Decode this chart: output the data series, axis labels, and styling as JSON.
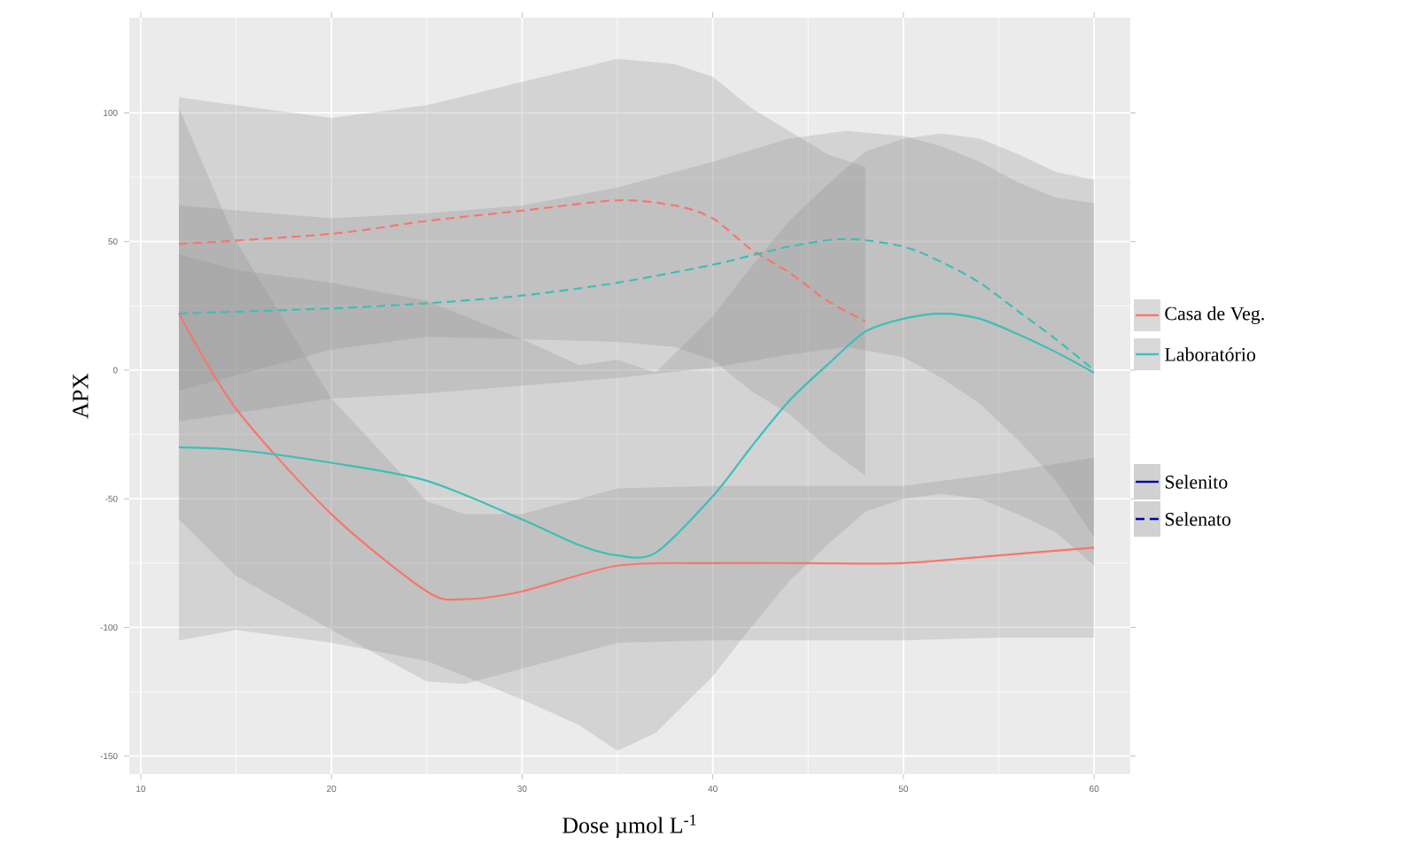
{
  "chart_data": {
    "type": "line",
    "xlabel": "Dose µmol L$^{-1}$",
    "ylabel": "APX",
    "xlim": [
      9.4,
      61.9
    ],
    "ylim": [
      -157,
      137
    ],
    "xticks": [
      10,
      20,
      30,
      40,
      50,
      60
    ],
    "yticks": [
      -150,
      -100,
      -50,
      0,
      50,
      100
    ],
    "grid": true,
    "legend": "right",
    "series": [
      {
        "name": "Casa de Veg.",
        "color": "#f8766d",
        "line_style": "solid",
        "x": [
          12,
          15,
          20,
          25,
          27,
          30,
          35,
          40,
          45,
          50,
          55,
          60
        ],
        "values": [
          22,
          -15,
          -56,
          -86,
          -89,
          -86,
          -76,
          -75,
          -75,
          -75,
          -72,
          -69
        ],
        "lower": [
          -58,
          -80,
          -101,
          -121,
          -122,
          -116,
          -106,
          -105,
          -105,
          -105,
          -104,
          -104
        ],
        "upper": [
          102,
          50,
          -11,
          -51,
          -56,
          -56,
          -46,
          -45,
          -45,
          -45,
          -40,
          -34
        ]
      },
      {
        "name": "Laboratório",
        "color": "#3cbfb8",
        "line_style": "solid",
        "x": [
          12,
          15,
          20,
          25,
          30,
          33,
          35,
          37,
          40,
          42,
          44,
          46,
          48,
          50,
          52,
          54,
          56,
          58,
          60
        ],
        "values": [
          -30,
          -31,
          -36,
          -43,
          -58,
          -68,
          -72,
          -71,
          -49,
          -30,
          -12,
          2,
          15,
          20,
          22,
          20,
          14,
          7,
          -1
        ],
        "lower": [
          -105,
          -101,
          -106,
          -113,
          -128,
          -138,
          -148,
          -141,
          -119,
          -100,
          -82,
          -68,
          -55,
          -50,
          -48,
          -50,
          -56,
          -63,
          -76
        ],
        "upper": [
          45,
          39,
          34,
          27,
          12,
          2,
          4,
          -1,
          21,
          40,
          58,
          72,
          85,
          90,
          92,
          90,
          84,
          77,
          74
        ]
      },
      {
        "color": "#f8766d",
        "line_style": "dashed",
        "x": [
          12,
          20,
          25,
          30,
          35,
          38,
          40,
          42,
          44,
          46,
          48
        ],
        "values": [
          49,
          53,
          58,
          62,
          66,
          64,
          59,
          47,
          38,
          27,
          19
        ],
        "lower": [
          -8,
          8,
          13,
          12,
          11,
          9,
          4,
          -8,
          -17,
          -30,
          -41
        ],
        "upper": [
          106,
          98,
          103,
          112,
          121,
          119,
          114,
          102,
          93,
          84,
          79
        ]
      },
      {
        "color": "#3cbfb8",
        "line_style": "dashed",
        "x": [
          12,
          20,
          25,
          30,
          35,
          40,
          44,
          47,
          50,
          52,
          54,
          56,
          58,
          60
        ],
        "values": [
          22,
          24,
          26,
          29,
          34,
          41,
          48,
          51,
          48,
          42,
          34,
          23,
          12,
          0
        ],
        "lower": [
          -20,
          -11,
          -9,
          -6,
          -3,
          1,
          6,
          9,
          5,
          -3,
          -13,
          -27,
          -43,
          -65
        ],
        "upper": [
          64,
          59,
          61,
          64,
          71,
          81,
          90,
          93,
          91,
          87,
          81,
          73,
          67,
          65
        ]
      }
    ],
    "annotations": [
      "Selenito",
      "Selenato"
    ]
  }
}
